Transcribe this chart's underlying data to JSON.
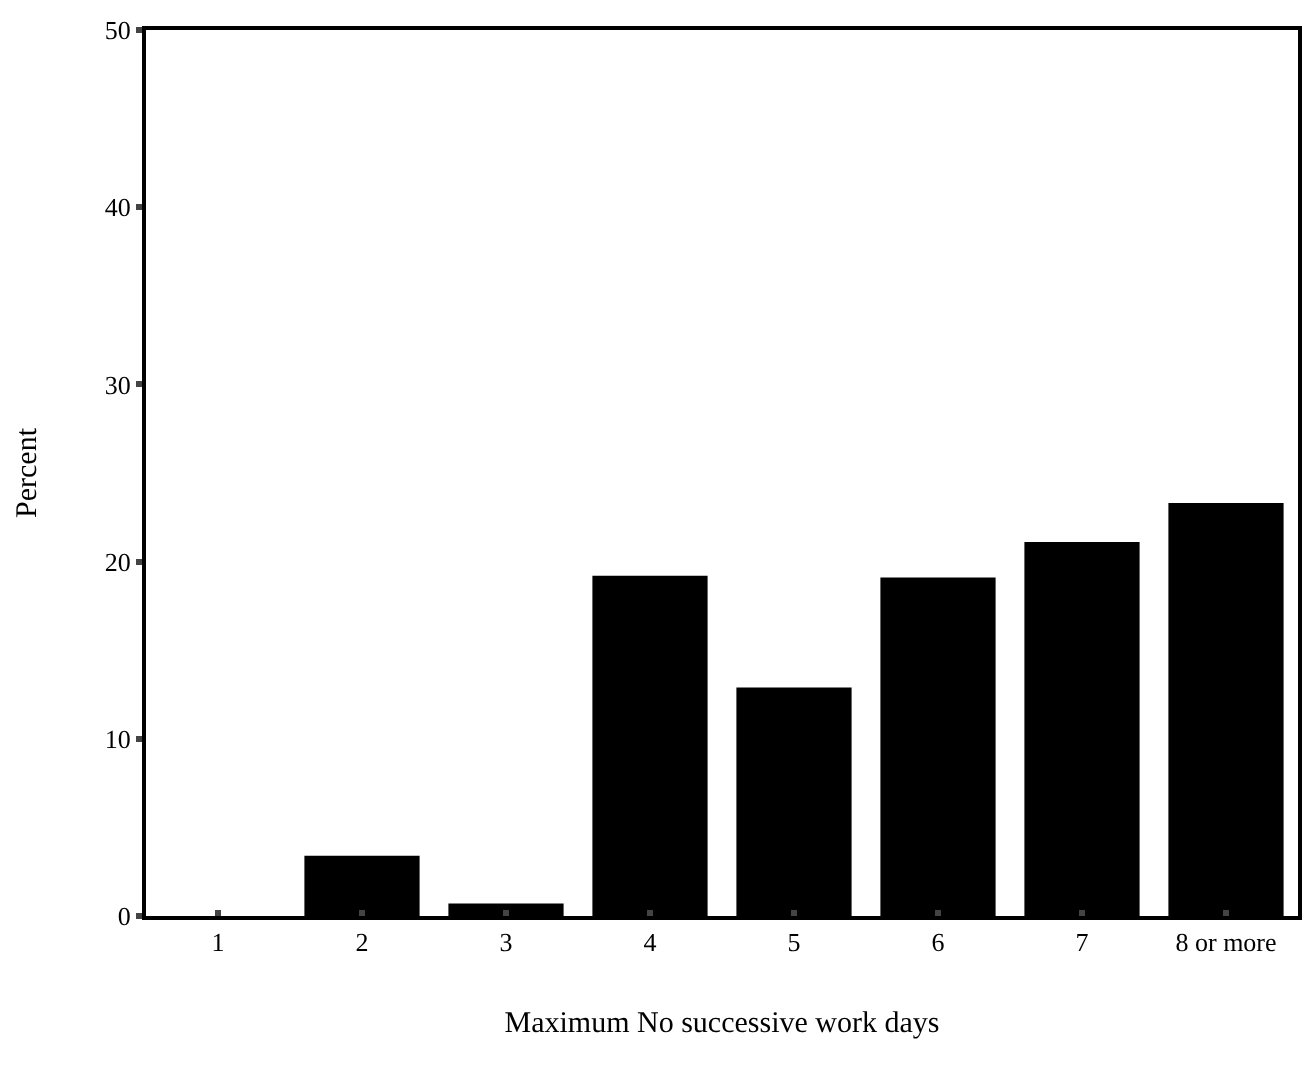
{
  "chart_data": {
    "type": "bar",
    "xlabel": "Maximum No successive work days",
    "ylabel": "Percent",
    "categories": [
      "1",
      "2",
      "3",
      "4",
      "5",
      "6",
      "7",
      "8 or more"
    ],
    "values": [
      0,
      3.4,
      0.7,
      19.2,
      12.9,
      19.1,
      21.1,
      23.3
    ],
    "color": "#000000",
    "ylim": [
      0,
      50
    ],
    "yticks": [
      0,
      10,
      20,
      30,
      40,
      50
    ],
    "grid": false,
    "legend": false
  }
}
